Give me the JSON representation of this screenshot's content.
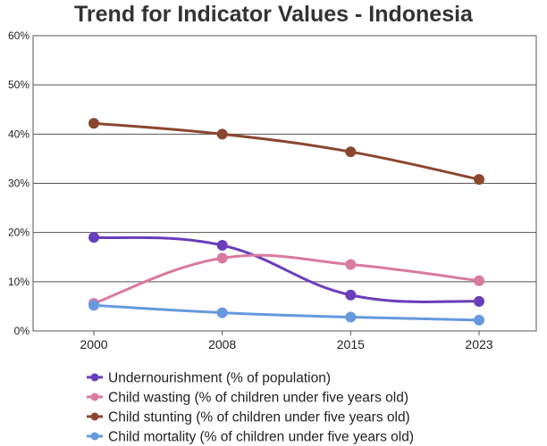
{
  "chart_data": {
    "type": "line",
    "title": "Trend for Indicator Values - Indonesia",
    "xlabel": "",
    "ylabel": "",
    "categories": [
      "2000",
      "2008",
      "2015",
      "2023"
    ],
    "yticks": [
      "0%",
      "10%",
      "20%",
      "30%",
      "40%",
      "50%",
      "60%"
    ],
    "ylim": [
      0,
      60
    ],
    "grid": true,
    "legend_position": "bottom",
    "series": [
      {
        "name": "Undernourishment (% of population)",
        "color": "#6a3dbd",
        "values": [
          19.0,
          17.4,
          7.3,
          6.0
        ]
      },
      {
        "name": "Child wasting (% of children under five years old)",
        "color": "#d97aa0",
        "values": [
          5.6,
          14.8,
          13.5,
          10.2
        ]
      },
      {
        "name": "Child stunting (% of children under five years old)",
        "color": "#8b4630",
        "values": [
          42.2,
          40.0,
          36.4,
          30.8
        ]
      },
      {
        "name": "Child mortality (% of children under five years old)",
        "color": "#6699dd",
        "values": [
          5.2,
          3.7,
          2.8,
          2.2
        ]
      }
    ]
  }
}
